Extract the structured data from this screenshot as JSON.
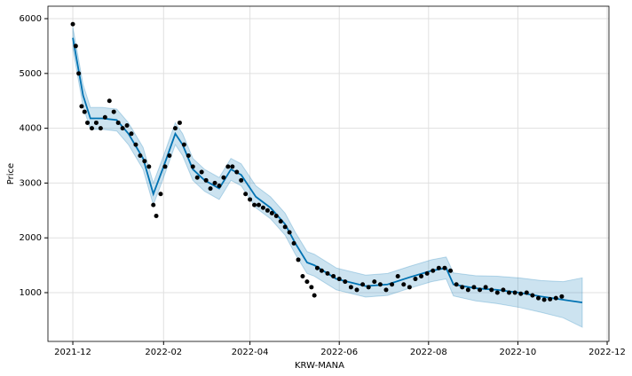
{
  "chart_data": {
    "type": "line",
    "xlabel": "KRW-MANA",
    "ylabel": "Price",
    "xlim": [
      -17,
      366.2
    ],
    "ylim": [
      110,
      6227
    ],
    "xticks": [
      {
        "value": 0,
        "label": "2021-12"
      },
      {
        "value": 62,
        "label": "2022-02"
      },
      {
        "value": 121,
        "label": "2022-04"
      },
      {
        "value": 182,
        "label": "2022-06"
      },
      {
        "value": 243,
        "label": "2022-08"
      },
      {
        "value": 304,
        "label": "2022-10"
      },
      {
        "value": 365,
        "label": "2022-12"
      }
    ],
    "yticks": [
      1000,
      2000,
      3000,
      4000,
      5000,
      6000
    ],
    "grid": true,
    "series": [
      {
        "type": "band_line",
        "color": "#0072b2",
        "band_color": "#0072b2",
        "x": [
          0,
          3,
          7,
          12,
          20,
          30,
          38,
          48,
          55,
          62,
          70,
          75,
          82,
          90,
          100,
          108,
          115,
          125,
          135,
          145,
          152,
          160,
          165,
          180,
          200,
          215,
          230,
          245,
          255,
          260,
          275,
          290,
          305,
          320,
          335,
          348
        ],
        "values": [
          5650,
          5200,
          4600,
          4180,
          4180,
          4150,
          3900,
          3450,
          2800,
          3300,
          3900,
          3700,
          3250,
          3050,
          2900,
          3250,
          3150,
          2750,
          2550,
          2250,
          1900,
          1550,
          1500,
          1250,
          1120,
          1150,
          1280,
          1400,
          1450,
          1150,
          1080,
          1050,
          1000,
          930,
          870,
          820
        ],
        "lower": [
          5450,
          5000,
          4400,
          3980,
          3980,
          3950,
          3700,
          3250,
          2600,
          3100,
          3700,
          3500,
          3050,
          2850,
          2700,
          3050,
          2950,
          2550,
          2350,
          2050,
          1700,
          1350,
          1300,
          1050,
          920,
          950,
          1080,
          1200,
          1250,
          940,
          850,
          800,
          730,
          640,
          540,
          370
        ],
        "upper": [
          5850,
          5400,
          4800,
          4380,
          4380,
          4350,
          4100,
          3650,
          3000,
          3500,
          4100,
          3900,
          3450,
          3250,
          3100,
          3450,
          3350,
          2950,
          2750,
          2450,
          2100,
          1750,
          1700,
          1450,
          1320,
          1350,
          1480,
          1600,
          1650,
          1360,
          1310,
          1300,
          1270,
          1220,
          1200,
          1270
        ]
      },
      {
        "type": "scatter",
        "color": "#000000",
        "x": [
          0,
          2,
          4,
          6,
          8,
          10,
          13,
          16,
          19,
          22,
          25,
          28,
          31,
          34,
          37,
          40,
          43,
          46,
          49,
          52,
          55,
          57,
          60,
          63,
          66,
          70,
          73,
          76,
          79,
          82,
          85,
          88,
          91,
          94,
          97,
          100,
          103,
          106,
          109,
          112,
          115,
          118,
          121,
          124,
          127,
          130,
          133,
          136,
          139,
          142,
          145,
          148,
          151,
          154,
          157,
          160,
          163,
          165,
          167,
          170,
          174,
          178,
          182,
          186,
          190,
          194,
          198,
          202,
          206,
          210,
          214,
          218,
          222,
          226,
          230,
          234,
          238,
          242,
          246,
          250,
          254,
          258,
          262,
          266,
          270,
          274,
          278,
          282,
          286,
          290,
          294,
          298,
          302,
          306,
          310,
          314,
          318,
          322,
          326,
          330,
          334
        ],
        "values": [
          5900,
          5500,
          5000,
          4400,
          4300,
          4100,
          4000,
          4100,
          4000,
          4200,
          4500,
          4300,
          4100,
          4000,
          4050,
          3900,
          3700,
          3500,
          3400,
          3300,
          2600,
          2400,
          2800,
          3300,
          3500,
          4000,
          4100,
          3700,
          3500,
          3300,
          3100,
          3200,
          3050,
          2900,
          3000,
          2950,
          3100,
          3300,
          3300,
          3200,
          3050,
          2800,
          2700,
          2600,
          2600,
          2550,
          2500,
          2450,
          2400,
          2300,
          2200,
          2100,
          1900,
          1600,
          1300,
          1200,
          1100,
          950,
          1450,
          1400,
          1350,
          1300,
          1250,
          1200,
          1100,
          1050,
          1150,
          1100,
          1200,
          1150,
          1050,
          1150,
          1300,
          1150,
          1100,
          1250,
          1300,
          1350,
          1400,
          1450,
          1450,
          1400,
          1150,
          1100,
          1050,
          1100,
          1050,
          1100,
          1050,
          1000,
          1050,
          1000,
          1000,
          980,
          1000,
          950,
          900,
          870,
          880,
          900,
          930
        ]
      }
    ]
  }
}
